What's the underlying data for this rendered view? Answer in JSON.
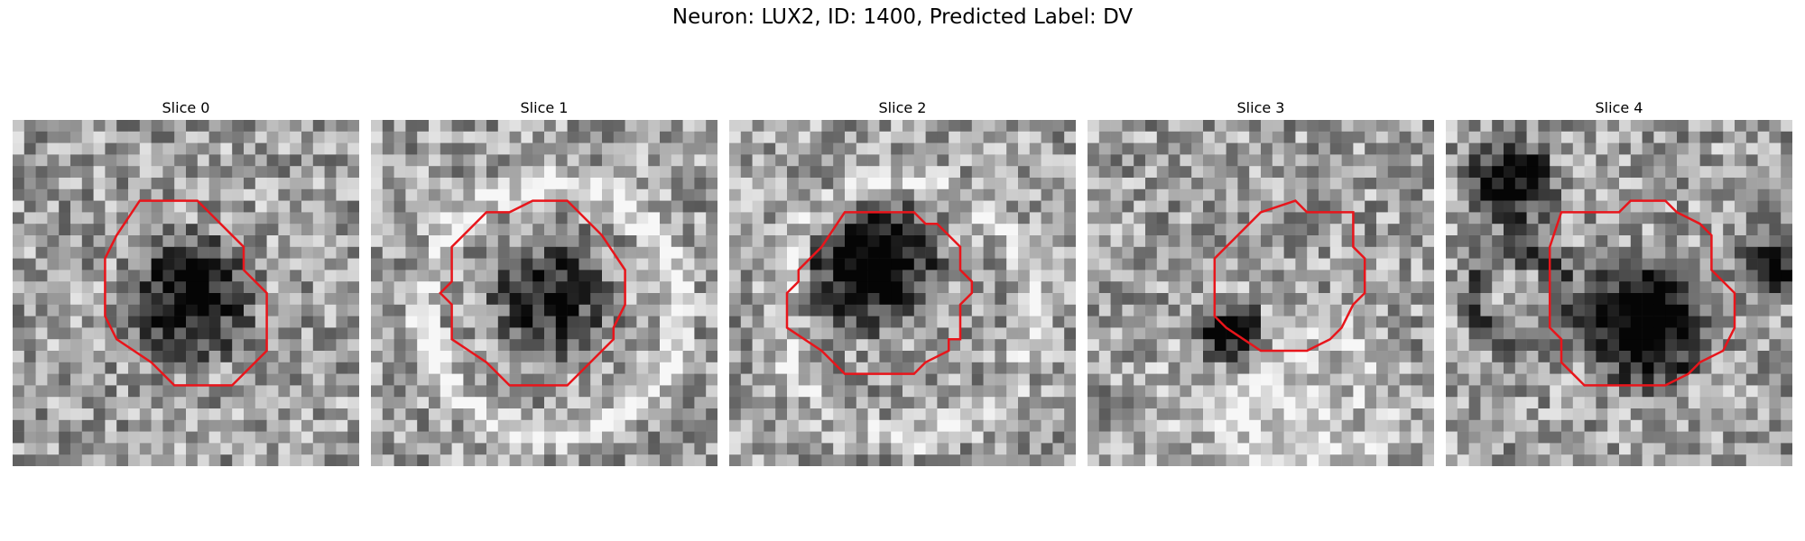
{
  "figure": {
    "title": "Neuron: LUX2, ID: 1400, Predicted Label: DV"
  },
  "slices": [
    {
      "label": "Slice 0"
    },
    {
      "label": "Slice 1"
    },
    {
      "label": "Slice 2"
    },
    {
      "label": "Slice 3"
    },
    {
      "label": "Slice 4"
    }
  ],
  "colors": {
    "contour": "#e8151b",
    "background": "#ffffff"
  }
}
